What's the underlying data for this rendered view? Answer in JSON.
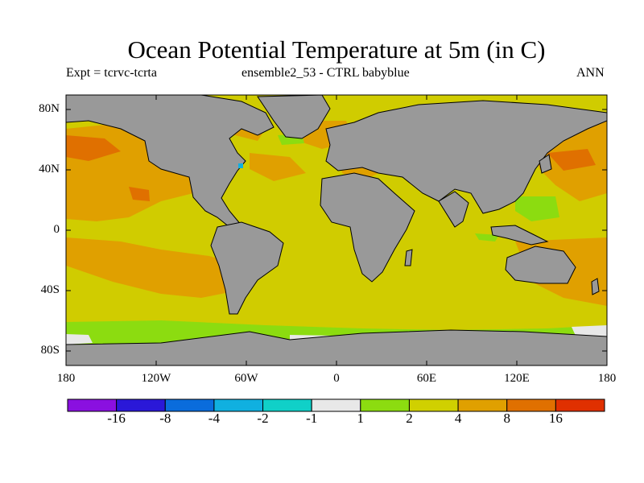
{
  "title": "Ocean Potential Temperature at 5m (in C)",
  "subtitle_left": "Expt = tcrvc-tcrta",
  "subtitle_center": "ensemble2_53 - CTRL babyblue",
  "subtitle_right": "ANN",
  "lat_ticks": [
    "80N",
    "40N",
    "0",
    "40S",
    "80S"
  ],
  "lon_ticks": [
    "180",
    "120W",
    "60W",
    "0",
    "60E",
    "120E",
    "180"
  ],
  "colorbar": {
    "labels": [
      "-16",
      "-8",
      "-4",
      "-2",
      "-1",
      "1",
      "2",
      "4",
      "8",
      "16"
    ],
    "colors": [
      "#8a10e0",
      "#2a18d8",
      "#0a6cdc",
      "#10b0e0",
      "#10d0c8",
      "#e8e8e8",
      "#8cdc10",
      "#d0d000",
      "#e0a000",
      "#e07000",
      "#e03000"
    ]
  },
  "land_color": "#999999",
  "ocean_color": "#d0cc00"
}
